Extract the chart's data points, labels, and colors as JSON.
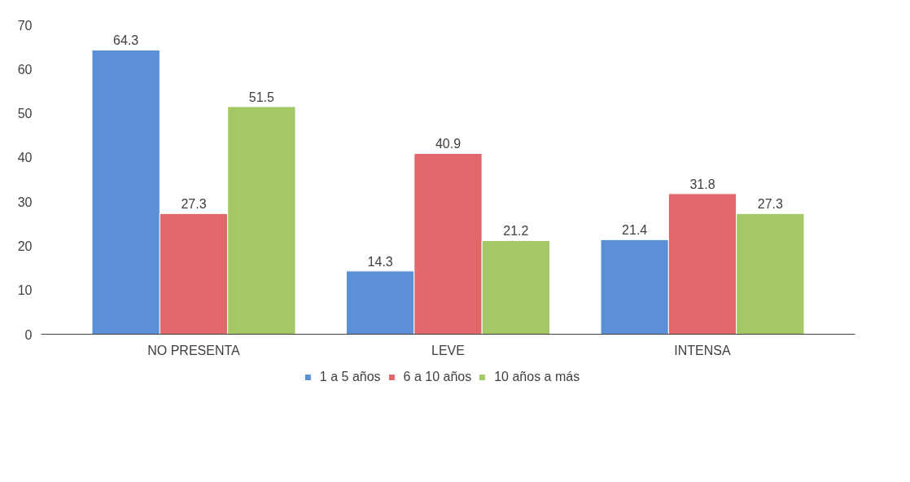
{
  "chart_data": {
    "type": "bar",
    "categories": [
      "NO PRESENTA",
      "LEVE",
      "INTENSA"
    ],
    "series": [
      {
        "name": "1 a 5 años",
        "color": "#5b8fd6",
        "values": [
          64.3,
          14.3,
          21.4
        ]
      },
      {
        "name": "6 a 10 años",
        "color": "#e0676a",
        "values": [
          27.3,
          40.9,
          31.8
        ]
      },
      {
        "name": "10 años a más",
        "color": "#a5c867",
        "values": [
          51.5,
          21.2,
          27.3
        ]
      }
    ],
    "ylim": [
      0,
      70
    ],
    "yticks": [
      0,
      10,
      20,
      30,
      40,
      50,
      60,
      70
    ],
    "grid": false,
    "legend": "bottom",
    "data_labels": true
  }
}
